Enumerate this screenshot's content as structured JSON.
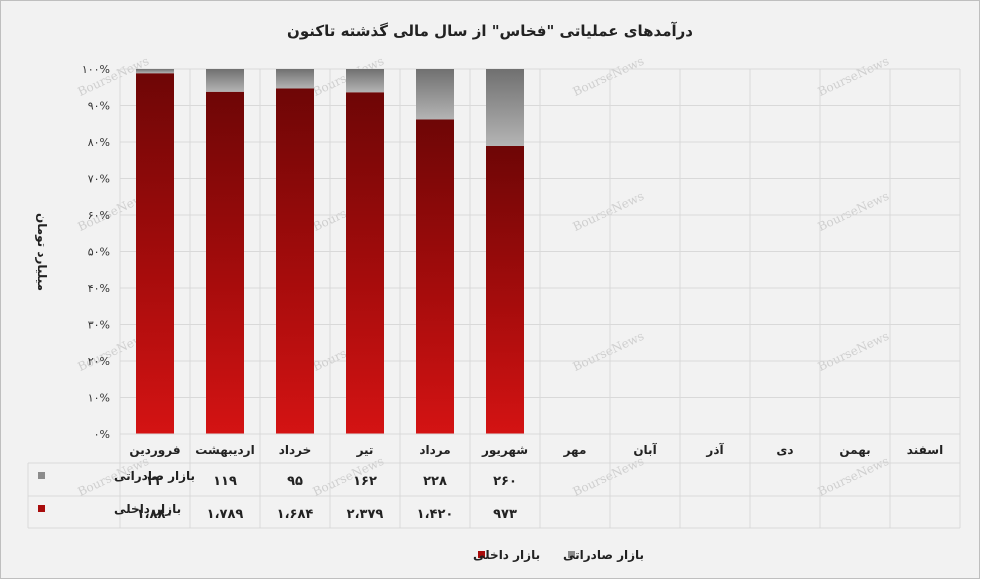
{
  "chart_data": {
    "type": "bar",
    "stacked": "percent",
    "title": "درآمدهای عملیاتی \"فخاس\" از سال مالی گذشته تاکنون",
    "ylabel": "میلیارد تومان",
    "ylim": [
      0,
      100
    ],
    "yticks": [
      "۰%",
      "۱۰%",
      "۲۰%",
      "۳۰%",
      "۴۰%",
      "۵۰%",
      "۶۰%",
      "۷۰%",
      "۸۰%",
      "۹۰%",
      "۱۰۰%"
    ],
    "categories": [
      "فروردین",
      "اردیبهشت",
      "خرداد",
      "تیر",
      "مرداد",
      "شهریور",
      "مهر",
      "آبان",
      "آذر",
      "دی",
      "بهمن",
      "اسفند"
    ],
    "series": [
      {
        "name": "بازار صادراتی",
        "color": "#8c8c8c",
        "values": [
          22,
          119,
          95,
          162,
          228,
          260,
          null,
          null,
          null,
          null,
          null,
          null
        ],
        "labels": [
          "۲۲",
          "۱۱۹",
          "۹۵",
          "۱۶۲",
          "۲۲۸",
          "۲۶۰",
          "",
          "",
          "",
          "",
          "",
          ""
        ]
      },
      {
        "name": "بازار داخلی",
        "color": "#a80c0c",
        "values": [
          1880,
          1789,
          1684,
          2379,
          1420,
          973,
          null,
          null,
          null,
          null,
          null,
          null
        ],
        "labels": [
          "۱،۸۸۰",
          "۱،۷۸۹",
          "۱،۶۸۴",
          "۲،۳۷۹",
          "۱،۴۲۰",
          "۹۷۳",
          "",
          "",
          "",
          "",
          "",
          ""
        ]
      }
    ],
    "legend": "bottom",
    "grid": true,
    "data_table": true
  },
  "watermark": "BourseNews"
}
